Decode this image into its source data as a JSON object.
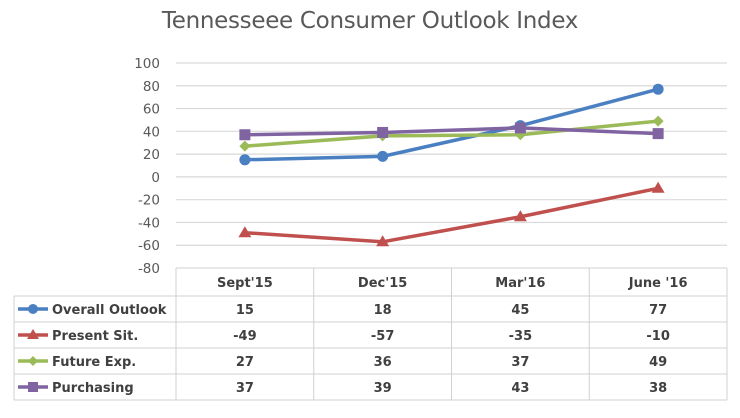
{
  "chart_data": {
    "type": "line",
    "title": "Tennesseee Consumer Outlook Index",
    "xlabel": "",
    "ylabel": "",
    "categories": [
      "Sept'15",
      "Dec'15",
      "Mar'16",
      "June '16"
    ],
    "ylim": [
      -80,
      100
    ],
    "yticks": [
      100,
      80,
      60,
      40,
      20,
      0,
      -20,
      -40,
      -60,
      -80
    ],
    "grid": true,
    "legend": "data-table-left",
    "series": [
      {
        "name": "Overall Outlook",
        "values": [
          15,
          18,
          45,
          77
        ],
        "color": "#4a7fc1",
        "marker": "circle"
      },
      {
        "name": "Present Sit.",
        "values": [
          -49,
          -57,
          -35,
          -10
        ],
        "color": "#c0504d",
        "marker": "triangle"
      },
      {
        "name": "Future Exp.",
        "values": [
          27,
          36,
          37,
          49
        ],
        "color": "#9bbb59",
        "marker": "diamond"
      },
      {
        "name": "Purchasing",
        "values": [
          37,
          39,
          43,
          38
        ],
        "color": "#8064a2",
        "marker": "square"
      }
    ]
  }
}
